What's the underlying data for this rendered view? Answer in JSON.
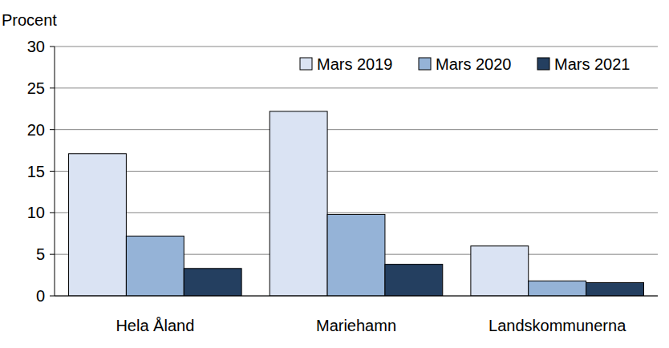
{
  "chart_data": {
    "type": "bar",
    "ylabel": "Procent",
    "categories": [
      "Hela Åland",
      "Mariehamn",
      "Landskommunerna"
    ],
    "series": [
      {
        "name": "Mars 2019",
        "color": "#dae3f3",
        "values": [
          17.1,
          22.2,
          6.0
        ]
      },
      {
        "name": "Mars 2020",
        "color": "#95b3d7",
        "values": [
          7.2,
          9.8,
          1.8
        ]
      },
      {
        "name": "Mars 2021",
        "color": "#243f60",
        "values": [
          3.3,
          3.8,
          1.6
        ]
      }
    ],
    "ylim": [
      0,
      30
    ],
    "yticks": [
      0,
      5,
      10,
      15,
      20,
      25,
      30
    ],
    "grid": true,
    "legend": "upper right"
  }
}
